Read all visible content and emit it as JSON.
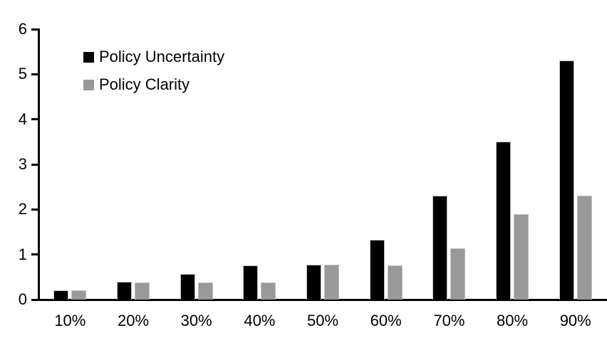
{
  "chart_data": {
    "type": "bar",
    "title": "",
    "xlabel": "",
    "ylabel": "",
    "categories": [
      "10%",
      "20%",
      "30%",
      "40%",
      "50%",
      "60%",
      "70%",
      "80%",
      "90%"
    ],
    "series": [
      {
        "name": "Policy Uncertainty",
        "color": "#000000",
        "values": [
          0.2,
          0.4,
          0.57,
          0.76,
          0.78,
          1.33,
          2.3,
          3.5,
          5.3
        ]
      },
      {
        "name": "Policy Clarity",
        "color": "#999999",
        "values": [
          0.2,
          0.38,
          0.38,
          0.38,
          0.77,
          0.76,
          1.13,
          1.9,
          2.3
        ]
      }
    ],
    "ylim": [
      0,
      6
    ],
    "yticks": [
      "0",
      "1",
      "2",
      "3",
      "4",
      "5",
      "6"
    ],
    "grid": false,
    "legend_position": "top-left-inside",
    "colors": {
      "axis": "#000000",
      "bar_border": "#bfbfbf",
      "background": "#ffffff"
    }
  }
}
